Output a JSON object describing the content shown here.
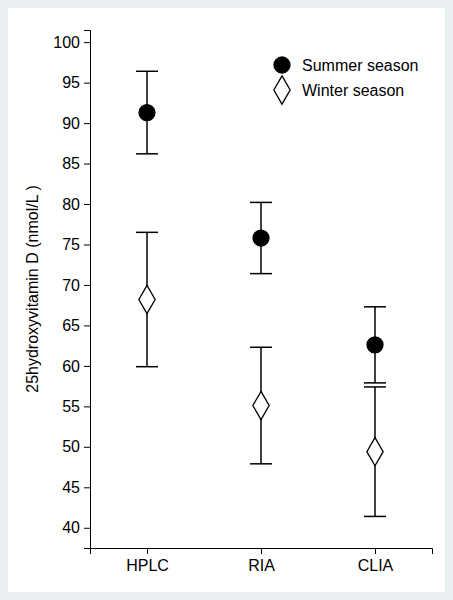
{
  "chart_data": {
    "type": "scatter",
    "y_label": "25hydroxyvitamin D (nmol/L )",
    "categories": [
      "HPLC",
      "RIA",
      "CLIA"
    ],
    "series": [
      {
        "name": "Summer season",
        "color": "#000000",
        "marker": "circle",
        "values": [
          91.3,
          75.8,
          62.6
        ],
        "errors": [
          5.1,
          4.4,
          4.7
        ]
      },
      {
        "name": "Winter season",
        "color": "#000000",
        "marker": "diamond-open",
        "values": [
          68.2,
          55.1,
          49.4
        ],
        "errors": [
          8.3,
          7.2,
          8.0
        ]
      }
    ],
    "ylim": [
      37.5,
      101.5
    ],
    "yticks": [
      40,
      45,
      50,
      55,
      60,
      65,
      70,
      75,
      80,
      85,
      90,
      95,
      100
    ],
    "grid": false,
    "legend": "upper right"
  }
}
